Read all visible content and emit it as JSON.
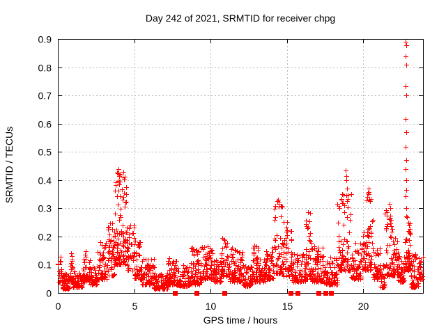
{
  "chart_data": {
    "type": "scatter",
    "title": "Day 242 of 2021, SRMTID for receiver chpg",
    "xlabel": "GPS time / hours",
    "ylabel": "SRMTID / TECUs",
    "xlim": [
      0,
      23.9
    ],
    "ylim": [
      0,
      0.9
    ],
    "xticks": [
      {
        "v": 0,
        "label": "0"
      },
      {
        "v": 5,
        "label": "5"
      },
      {
        "v": 10,
        "label": "10"
      },
      {
        "v": 15,
        "label": "15"
      },
      {
        "v": 20,
        "label": "20"
      }
    ],
    "yticks": [
      {
        "v": 0.0,
        "label": "0"
      },
      {
        "v": 0.1,
        "label": "0.1"
      },
      {
        "v": 0.2,
        "label": "0.2"
      },
      {
        "v": 0.3,
        "label": "0.3"
      },
      {
        "v": 0.4,
        "label": "0.4"
      },
      {
        "v": 0.5,
        "label": "0.5"
      },
      {
        "v": 0.6,
        "label": "0.6"
      },
      {
        "v": 0.7,
        "label": "0.7"
      },
      {
        "v": 0.8,
        "label": "0.8"
      },
      {
        "v": 0.9,
        "label": "0.9"
      }
    ],
    "grid": "dashed",
    "legend": "none",
    "colors": {
      "marker": "#ff0000",
      "grid": "#b8b8b8",
      "axis": "#000000",
      "background": "#ffffff",
      "text": "#000000"
    },
    "series": [
      {
        "name": "SRMTID scatter",
        "marker": "plus",
        "color": "#ff0000",
        "envelope_bins": [
          [
            0.0,
            0.3,
            0.04,
            0.13,
            25
          ],
          [
            0.3,
            0.8,
            0.015,
            0.07,
            60
          ],
          [
            0.8,
            1.0,
            0.04,
            0.17,
            25
          ],
          [
            1.0,
            1.6,
            0.02,
            0.08,
            55
          ],
          [
            1.6,
            2.1,
            0.04,
            0.15,
            50
          ],
          [
            2.1,
            2.6,
            0.03,
            0.1,
            50
          ],
          [
            2.6,
            3.2,
            0.05,
            0.18,
            55
          ],
          [
            3.2,
            3.7,
            0.06,
            0.25,
            50
          ],
          [
            3.7,
            4.1,
            0.1,
            0.44,
            55
          ],
          [
            4.1,
            4.5,
            0.1,
            0.42,
            45
          ],
          [
            4.5,
            5.0,
            0.08,
            0.25,
            45
          ],
          [
            5.0,
            5.5,
            0.05,
            0.2,
            45
          ],
          [
            5.5,
            6.3,
            0.03,
            0.12,
            70
          ],
          [
            6.3,
            7.2,
            0.015,
            0.07,
            80
          ],
          [
            7.2,
            7.8,
            0.03,
            0.13,
            55
          ],
          [
            7.8,
            8.6,
            0.025,
            0.1,
            70
          ],
          [
            8.6,
            9.4,
            0.03,
            0.16,
            70
          ],
          [
            9.4,
            10.2,
            0.05,
            0.17,
            70
          ],
          [
            10.2,
            10.7,
            0.04,
            0.12,
            45
          ],
          [
            10.7,
            11.2,
            0.06,
            0.2,
            45
          ],
          [
            11.2,
            11.7,
            0.04,
            0.16,
            45
          ],
          [
            11.7,
            12.1,
            0.04,
            0.15,
            40
          ],
          [
            12.1,
            12.7,
            0.025,
            0.1,
            55
          ],
          [
            12.7,
            13.1,
            0.04,
            0.17,
            40
          ],
          [
            13.1,
            13.6,
            0.04,
            0.12,
            45
          ],
          [
            13.6,
            14.1,
            0.05,
            0.16,
            45
          ],
          [
            14.1,
            14.7,
            0.07,
            0.33,
            55
          ],
          [
            14.7,
            15.3,
            0.06,
            0.27,
            50
          ],
          [
            15.3,
            16.2,
            0.04,
            0.14,
            75
          ],
          [
            16.2,
            16.6,
            0.05,
            0.29,
            40
          ],
          [
            16.6,
            17.4,
            0.04,
            0.17,
            70
          ],
          [
            17.4,
            18.3,
            0.03,
            0.13,
            75
          ],
          [
            18.3,
            19.2,
            0.08,
            0.35,
            80
          ],
          [
            19.2,
            19.9,
            0.05,
            0.18,
            55
          ],
          [
            19.9,
            20.2,
            0.08,
            0.22,
            25
          ],
          [
            20.2,
            20.6,
            0.08,
            0.37,
            40
          ],
          [
            20.6,
            21.1,
            0.05,
            0.16,
            40
          ],
          [
            21.1,
            21.4,
            0.02,
            0.1,
            30
          ],
          [
            21.4,
            21.9,
            0.06,
            0.3,
            45
          ],
          [
            21.9,
            22.3,
            0.06,
            0.2,
            40
          ],
          [
            22.3,
            22.7,
            0.04,
            0.14,
            35
          ],
          [
            22.7,
            23.1,
            0.08,
            0.25,
            45
          ],
          [
            23.1,
            23.6,
            0.02,
            0.14,
            45
          ],
          [
            23.6,
            23.9,
            0.05,
            0.13,
            25
          ]
        ],
        "outlier_points": [
          [
            22.78,
            0.89
          ],
          [
            22.8,
            0.878
          ],
          [
            22.78,
            0.838
          ],
          [
            22.79,
            0.808
          ],
          [
            22.78,
            0.732
          ],
          [
            22.8,
            0.7
          ],
          [
            22.78,
            0.616
          ],
          [
            22.79,
            0.569
          ],
          [
            22.78,
            0.518
          ],
          [
            22.8,
            0.47
          ],
          [
            22.78,
            0.44
          ],
          [
            22.79,
            0.4
          ],
          [
            22.8,
            0.365
          ],
          [
            22.78,
            0.342
          ],
          [
            22.79,
            0.302
          ],
          [
            22.8,
            0.272
          ],
          [
            22.86,
            0.268
          ],
          [
            22.95,
            0.248
          ],
          [
            23.0,
            0.238
          ],
          [
            23.05,
            0.228
          ],
          [
            22.97,
            0.218
          ],
          [
            23.03,
            0.212
          ],
          [
            23.08,
            0.206
          ],
          [
            18.85,
            0.435
          ],
          [
            18.9,
            0.415
          ],
          [
            18.88,
            0.4
          ],
          [
            18.92,
            0.37
          ],
          [
            18.87,
            0.345
          ],
          [
            18.6,
            0.35
          ],
          [
            18.55,
            0.332
          ],
          [
            18.65,
            0.318
          ],
          [
            20.35,
            0.37
          ],
          [
            20.33,
            0.35
          ],
          [
            20.38,
            0.33
          ],
          [
            3.95,
            0.44
          ],
          [
            3.9,
            0.425
          ],
          [
            4.0,
            0.415
          ],
          [
            4.3,
            0.43
          ],
          [
            4.25,
            0.41
          ],
          [
            21.7,
            0.315
          ],
          [
            21.75,
            0.3
          ],
          [
            14.4,
            0.33
          ],
          [
            14.45,
            0.315
          ]
        ]
      },
      {
        "name": "zero flags",
        "marker": "filled-square",
        "color": "#ff0000",
        "points": [
          [
            7.64,
            0
          ],
          [
            9.09,
            0
          ],
          [
            10.9,
            0
          ],
          [
            15.23,
            0
          ],
          [
            15.68,
            0
          ],
          [
            17.05,
            0
          ],
          [
            17.5,
            0
          ],
          [
            17.9,
            0
          ]
        ]
      }
    ]
  }
}
